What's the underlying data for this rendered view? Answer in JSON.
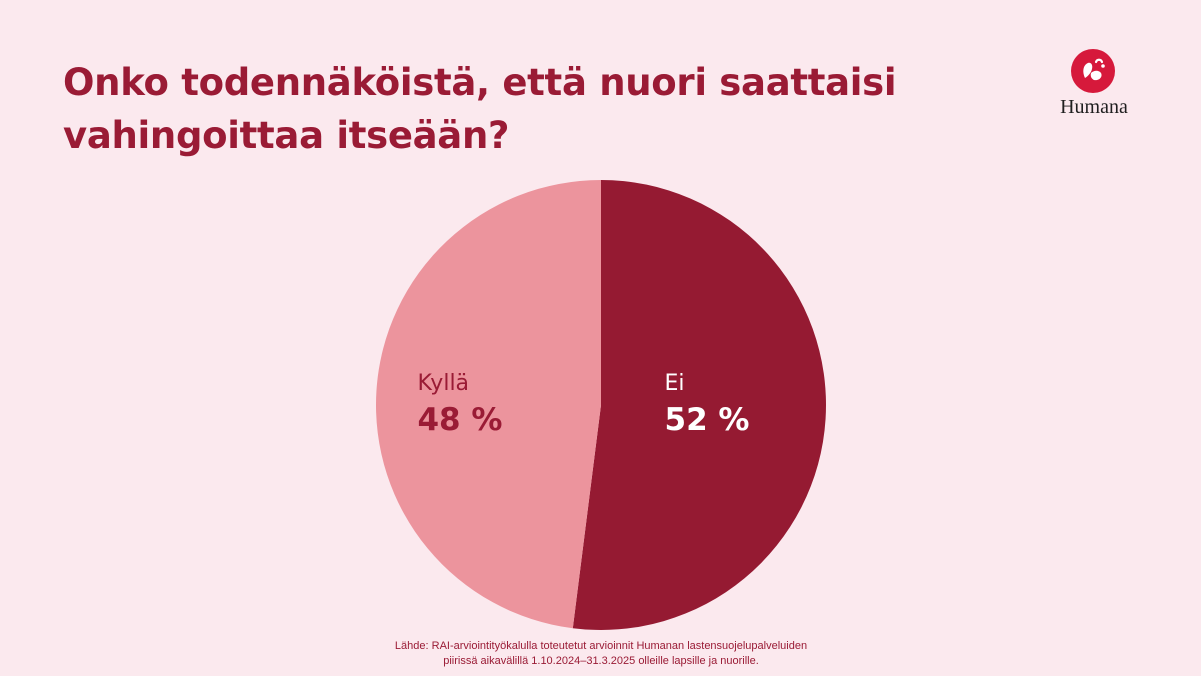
{
  "title": "Onko todennäköistä, että nuori saattaisi vahingoittaa itseään?",
  "logo": {
    "text": "Humana",
    "icon": "humana-heart-logo-icon",
    "color": "#d6193b"
  },
  "chart_data": {
    "type": "pie",
    "title": "Onko todennäköistä, että nuori saattaisi vahingoittaa itseään?",
    "slices": [
      {
        "label": "Kyllä",
        "value": 48,
        "value_label": "48 %",
        "color": "#ec949d",
        "text_color": "#9a1b35"
      },
      {
        "label": "Ei",
        "value": 52,
        "value_label": "52 %",
        "color": "#951a32",
        "text_color": "#ffffff"
      }
    ],
    "legend": "none",
    "labels": "inside"
  },
  "source": {
    "line1": "Lähde: RAI-arviointityökalulla toteutetut arvioinnit Humanan lastensuojelupalveluiden",
    "line2": "piirissä aikavälillä 1.10.2024–31.3.2025 olleille lapsille ja nuorille."
  },
  "colors": {
    "background": "#fbe9ee",
    "accent": "#9a1b35"
  }
}
